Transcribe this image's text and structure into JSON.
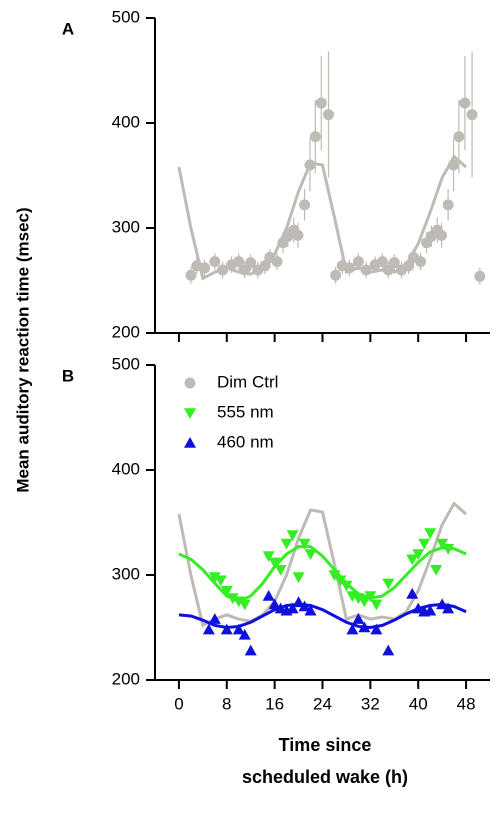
{
  "chart_data": [
    {
      "type": "scatter",
      "panel": "A",
      "ylabel": "Mean auditory reaction time (msec)",
      "xlim": [
        -4,
        52
      ],
      "xticks": [
        0,
        8,
        16,
        24,
        32,
        40,
        48
      ],
      "xtick_labels": false,
      "ylim": [
        200,
        500
      ],
      "yticks": [
        200,
        300,
        400,
        500
      ],
      "grid": false,
      "series": [
        {
          "color": "#bdbbb4",
          "marker": "circle",
          "x": [
            2,
            3,
            4.3,
            6,
            7.3,
            8.8,
            10,
            11,
            12,
            13.2,
            14.4,
            15.2,
            16.4,
            17.4,
            18.2,
            19.2,
            19.9,
            21,
            21.9,
            22.8,
            23.8,
            25,
            26.2,
            27.3,
            28.5,
            30,
            31.3,
            32.8,
            34,
            35,
            36,
            37.2,
            38.4,
            39.2,
            40.4,
            41.4,
            42.2,
            43.2,
            43.9,
            45,
            45.9,
            46.8,
            47.8,
            49,
            50.3
          ],
          "values": [
            255,
            264,
            262,
            268,
            260,
            265,
            268,
            260,
            267,
            260,
            264,
            272,
            268,
            286,
            292,
            298,
            293,
            322,
            360,
            387,
            419,
            408,
            255,
            264,
            262,
            268,
            260,
            265,
            268,
            260,
            267,
            260,
            264,
            272,
            268,
            286,
            292,
            298,
            293,
            322,
            360,
            387,
            419,
            408,
            254
          ],
          "errors": [
            8,
            8,
            8,
            8,
            8,
            8,
            8,
            8,
            8,
            8,
            8,
            8,
            8,
            10,
            10,
            12,
            12,
            15,
            25,
            35,
            45,
            60,
            8,
            8,
            8,
            8,
            8,
            8,
            8,
            8,
            8,
            8,
            8,
            8,
            8,
            10,
            10,
            12,
            12,
            15,
            25,
            35,
            45,
            60,
            8
          ],
          "fit_x": [
            0,
            2,
            4,
            6,
            8,
            10,
            12,
            14,
            16,
            18,
            20,
            22,
            24,
            26,
            28,
            30,
            32,
            34,
            36,
            38,
            40,
            42,
            44,
            46,
            48
          ],
          "fit": [
            358,
            300,
            252,
            258,
            262,
            258,
            256,
            262,
            275,
            300,
            335,
            362,
            360,
            310,
            258,
            262,
            258,
            260,
            258,
            265,
            285,
            315,
            348,
            368,
            358
          ]
        }
      ]
    },
    {
      "type": "scatter",
      "panel": "B",
      "xlabel": [
        "Time since",
        "scheduled wake (h)"
      ],
      "xlim": [
        -4,
        52
      ],
      "xticks": [
        0,
        8,
        16,
        24,
        32,
        40,
        48
      ],
      "ylim": [
        200,
        500
      ],
      "yticks": [
        200,
        300,
        400,
        500
      ],
      "grid": false,
      "legend": "upper left",
      "series": [
        {
          "name": "Dim Ctrl",
          "color": "#bdbbb4",
          "marker": "circle",
          "fit_x": [
            0,
            2,
            4,
            6,
            8,
            10,
            12,
            14,
            16,
            18,
            20,
            22,
            24,
            26,
            28,
            30,
            32,
            34,
            36,
            38,
            40,
            42,
            44,
            46,
            48
          ],
          "fit": [
            358,
            300,
            252,
            258,
            262,
            258,
            256,
            262,
            275,
            300,
            335,
            362,
            360,
            310,
            258,
            262,
            258,
            260,
            258,
            265,
            285,
            315,
            348,
            368,
            358
          ]
        },
        {
          "name": "555 nm",
          "color": "#33ee22",
          "marker": "triangle-down",
          "x": [
            6,
            7,
            8,
            9,
            10,
            11,
            15,
            16,
            17,
            18,
            19,
            20,
            21,
            22,
            26,
            27,
            28,
            29,
            30,
            31,
            32,
            33,
            35,
            39,
            40,
            41,
            42,
            43,
            44,
            45
          ],
          "values": [
            298,
            295,
            285,
            278,
            275,
            272,
            318,
            312,
            305,
            330,
            338,
            298,
            330,
            320,
            300,
            295,
            290,
            280,
            278,
            275,
            280,
            272,
            292,
            315,
            320,
            330,
            340,
            305,
            330,
            325
          ],
          "fit_x": [
            0,
            2,
            4,
            6,
            8,
            10,
            12,
            14,
            16,
            18,
            20,
            22,
            24,
            26,
            28,
            30,
            32,
            34,
            36,
            38,
            40,
            42,
            44,
            46,
            48
          ],
          "fit": [
            320,
            315,
            305,
            292,
            280,
            275,
            280,
            292,
            308,
            320,
            327,
            327,
            318,
            305,
            292,
            282,
            278,
            280,
            288,
            300,
            312,
            322,
            326,
            325,
            320
          ]
        },
        {
          "name": "460 nm",
          "color": "#1010dd",
          "marker": "triangle-up",
          "x": [
            5,
            6,
            8,
            10,
            11,
            12,
            15,
            16,
            17,
            18,
            19,
            20,
            21,
            22,
            29,
            30,
            31,
            33,
            35,
            39,
            40,
            41,
            42,
            44,
            45
          ],
          "values": [
            248,
            258,
            248,
            248,
            243,
            228,
            280,
            272,
            268,
            266,
            268,
            274,
            270,
            266,
            248,
            258,
            250,
            248,
            228,
            282,
            268,
            265,
            266,
            272,
            268
          ],
          "fit_x": [
            0,
            2,
            4,
            6,
            8,
            10,
            12,
            14,
            16,
            18,
            20,
            22,
            24,
            26,
            28,
            30,
            32,
            34,
            36,
            38,
            40,
            42,
            44,
            46,
            48
          ],
          "fit": [
            262,
            261,
            257,
            252,
            250,
            251,
            255,
            261,
            267,
            271,
            272,
            271,
            267,
            261,
            255,
            251,
            250,
            252,
            257,
            263,
            268,
            271,
            272,
            270,
            265
          ]
        }
      ]
    }
  ]
}
